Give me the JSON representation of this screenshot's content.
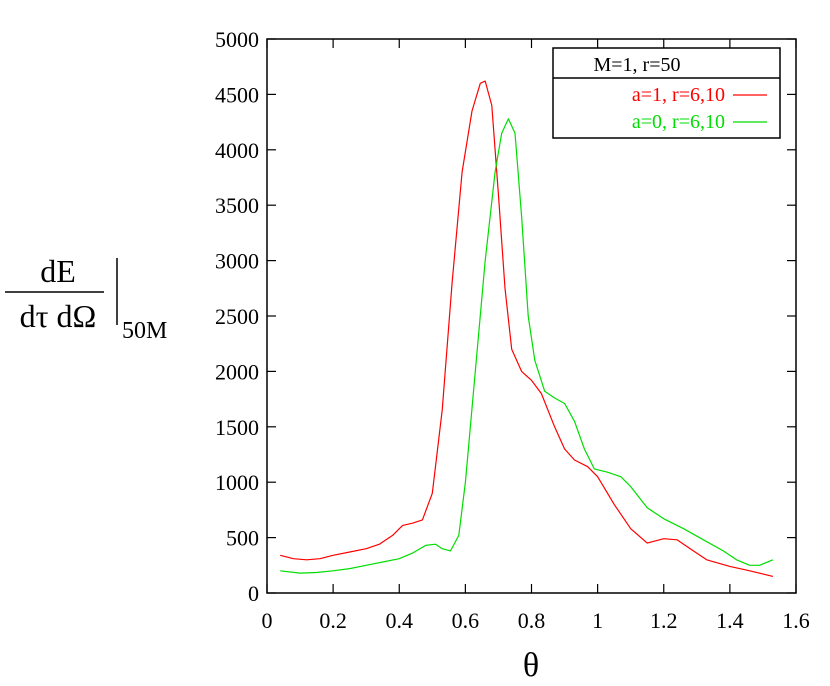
{
  "chart_data": {
    "type": "line",
    "title": "",
    "xlabel": "θ",
    "ylabel": {
      "numerator": "dE",
      "denominator": "dτ dΩ",
      "subscript": "50M"
    },
    "xlim": [
      0,
      1.6
    ],
    "ylim": [
      0,
      5000
    ],
    "x_ticks": [
      "0",
      "0.2",
      "0.4",
      "0.6",
      "0.8",
      "1",
      "1.2",
      "1.4",
      "1.6"
    ],
    "y_ticks": [
      "0",
      "500",
      "1000",
      "1500",
      "2000",
      "2500",
      "3000",
      "3500",
      "4000",
      "4500",
      "5000"
    ],
    "legend": {
      "title": "M=1, r=50",
      "position": "top-right"
    },
    "grid": false,
    "series": [
      {
        "name": "a=1, r=6,10",
        "color": "#ff0000",
        "points": [
          [
            0.04,
            340
          ],
          [
            0.08,
            310
          ],
          [
            0.12,
            300
          ],
          [
            0.16,
            310
          ],
          [
            0.2,
            340
          ],
          [
            0.25,
            370
          ],
          [
            0.3,
            400
          ],
          [
            0.34,
            440
          ],
          [
            0.38,
            520
          ],
          [
            0.41,
            610
          ],
          [
            0.44,
            630
          ],
          [
            0.47,
            660
          ],
          [
            0.5,
            900
          ],
          [
            0.53,
            1650
          ],
          [
            0.56,
            2800
          ],
          [
            0.59,
            3800
          ],
          [
            0.62,
            4350
          ],
          [
            0.645,
            4600
          ],
          [
            0.66,
            4620
          ],
          [
            0.68,
            4400
          ],
          [
            0.7,
            3600
          ],
          [
            0.72,
            2750
          ],
          [
            0.74,
            2200
          ],
          [
            0.77,
            2000
          ],
          [
            0.8,
            1920
          ],
          [
            0.83,
            1800
          ],
          [
            0.87,
            1500
          ],
          [
            0.9,
            1300
          ],
          [
            0.93,
            1200
          ],
          [
            0.97,
            1140
          ],
          [
            1.0,
            1050
          ],
          [
            1.05,
            800
          ],
          [
            1.1,
            580
          ],
          [
            1.15,
            450
          ],
          [
            1.2,
            490
          ],
          [
            1.24,
            480
          ],
          [
            1.28,
            400
          ],
          [
            1.33,
            300
          ],
          [
            1.4,
            240
          ],
          [
            1.46,
            200
          ],
          [
            1.53,
            150
          ]
        ]
      },
      {
        "name": "a=0, r=6,10",
        "color": "#00dd00",
        "points": [
          [
            0.04,
            200
          ],
          [
            0.1,
            180
          ],
          [
            0.15,
            185
          ],
          [
            0.2,
            200
          ],
          [
            0.25,
            220
          ],
          [
            0.3,
            250
          ],
          [
            0.35,
            280
          ],
          [
            0.4,
            310
          ],
          [
            0.44,
            360
          ],
          [
            0.48,
            430
          ],
          [
            0.51,
            440
          ],
          [
            0.53,
            400
          ],
          [
            0.555,
            380
          ],
          [
            0.58,
            520
          ],
          [
            0.6,
            1000
          ],
          [
            0.63,
            2000
          ],
          [
            0.66,
            3000
          ],
          [
            0.69,
            3800
          ],
          [
            0.71,
            4150
          ],
          [
            0.73,
            4280
          ],
          [
            0.75,
            4150
          ],
          [
            0.77,
            3400
          ],
          [
            0.79,
            2500
          ],
          [
            0.81,
            2100
          ],
          [
            0.84,
            1820
          ],
          [
            0.87,
            1760
          ],
          [
            0.9,
            1710
          ],
          [
            0.93,
            1550
          ],
          [
            0.96,
            1300
          ],
          [
            0.99,
            1120
          ],
          [
            1.03,
            1090
          ],
          [
            1.07,
            1050
          ],
          [
            1.1,
            960
          ],
          [
            1.15,
            770
          ],
          [
            1.2,
            670
          ],
          [
            1.26,
            580
          ],
          [
            1.32,
            480
          ],
          [
            1.38,
            380
          ],
          [
            1.42,
            300
          ],
          [
            1.46,
            250
          ],
          [
            1.49,
            250
          ],
          [
            1.53,
            300
          ]
        ]
      }
    ]
  }
}
